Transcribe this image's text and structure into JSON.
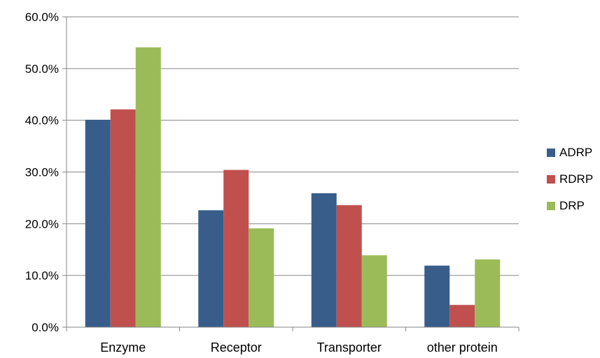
{
  "chart_data": {
    "type": "bar",
    "title": "",
    "xlabel": "",
    "ylabel": "",
    "categories": [
      "Enzyme",
      "Receptor",
      "Transporter",
      "other protein"
    ],
    "ylim": [
      0,
      60
    ],
    "yticks": [
      0,
      10,
      20,
      30,
      40,
      50,
      60
    ],
    "ytick_labels": [
      "0.0%",
      "10.0%",
      "20.0%",
      "30.0%",
      "40.0%",
      "50.0%",
      "60.0%"
    ],
    "grid": true,
    "legend_position": "right",
    "series": [
      {
        "name": "ADRP",
        "color": "#385D8A",
        "values": [
          40.1,
          22.6,
          25.9,
          11.9
        ]
      },
      {
        "name": "RDRP",
        "color": "#C0504D",
        "values": [
          42.1,
          30.4,
          23.6,
          4.3
        ]
      },
      {
        "name": "DRP",
        "color": "#9BBB59",
        "values": [
          54.1,
          19.1,
          13.9,
          13.1
        ]
      }
    ]
  }
}
